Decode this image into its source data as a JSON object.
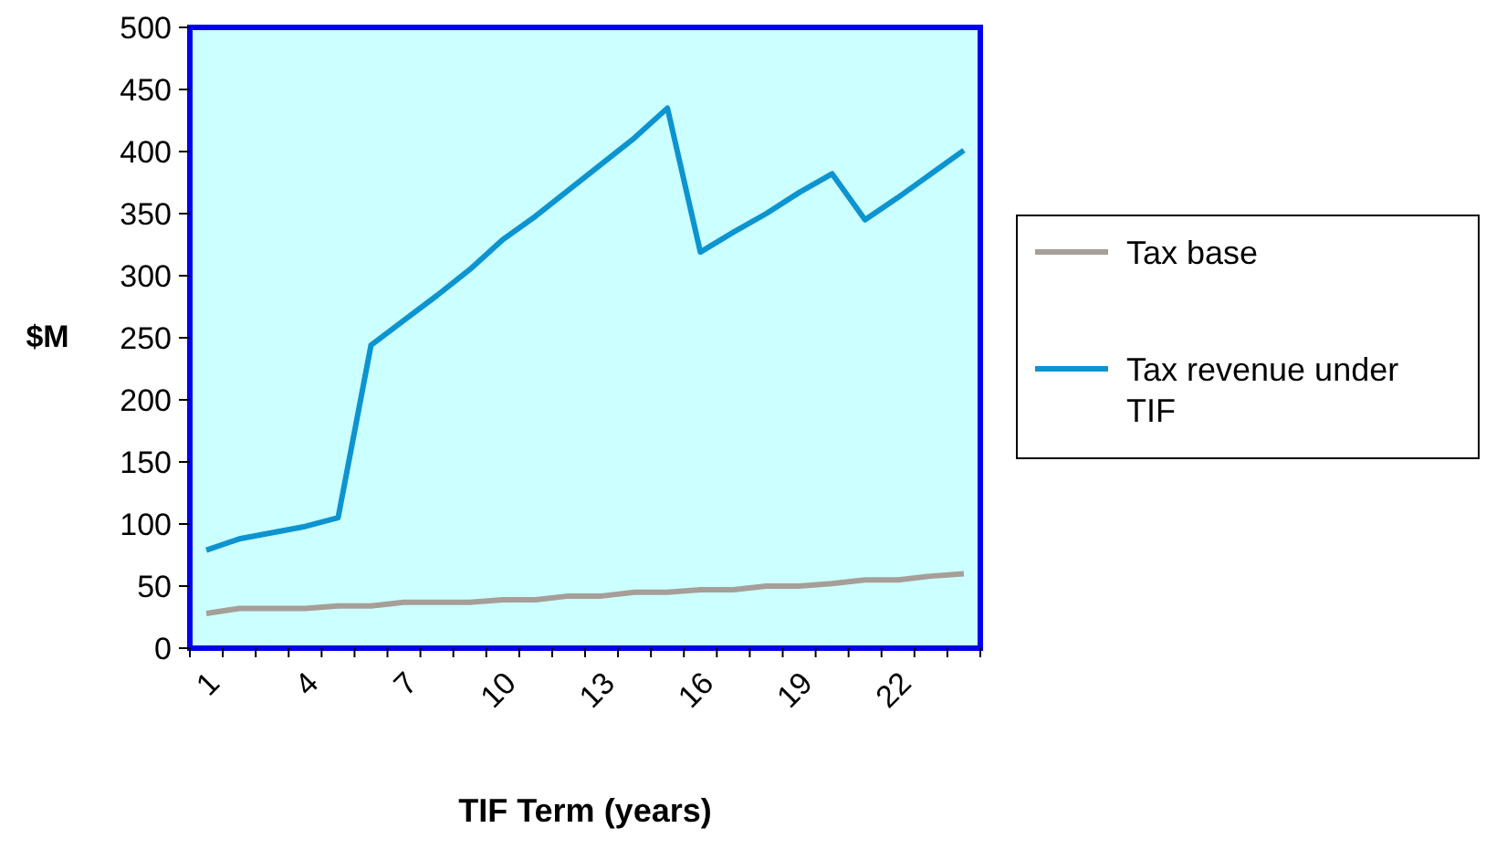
{
  "chart_data": {
    "type": "line",
    "xlabel": "TIF Term (years)",
    "ylabel": "$M",
    "categories": [
      "1",
      null,
      null,
      "4",
      null,
      null,
      "7",
      null,
      null,
      "10",
      null,
      null,
      "13",
      null,
      null,
      "16",
      null,
      null,
      "19",
      null,
      null,
      "22",
      null,
      null
    ],
    "series": [
      {
        "name": "Tax base",
        "color": "#a69e98",
        "values": [
          28,
          32,
          32,
          32,
          34,
          34,
          37,
          37,
          37,
          39,
          39,
          42,
          42,
          45,
          45,
          47,
          47,
          50,
          50,
          52,
          55,
          55,
          58,
          60
        ]
      },
      {
        "name": "Tax revenue under TIF",
        "color": "#0c94d0",
        "values": [
          79,
          88,
          93,
          98,
          105,
          244,
          264,
          284,
          305,
          329,
          348,
          369,
          390,
          411,
          435,
          319,
          335,
          350,
          367,
          382,
          345,
          363,
          382,
          401
        ]
      }
    ],
    "ylim": [
      0,
      500
    ],
    "yticks": [
      0,
      50,
      100,
      150,
      200,
      250,
      300,
      350,
      400,
      450,
      500
    ],
    "grid": false,
    "legend": "right",
    "marker": "none",
    "line_style": "solid"
  }
}
